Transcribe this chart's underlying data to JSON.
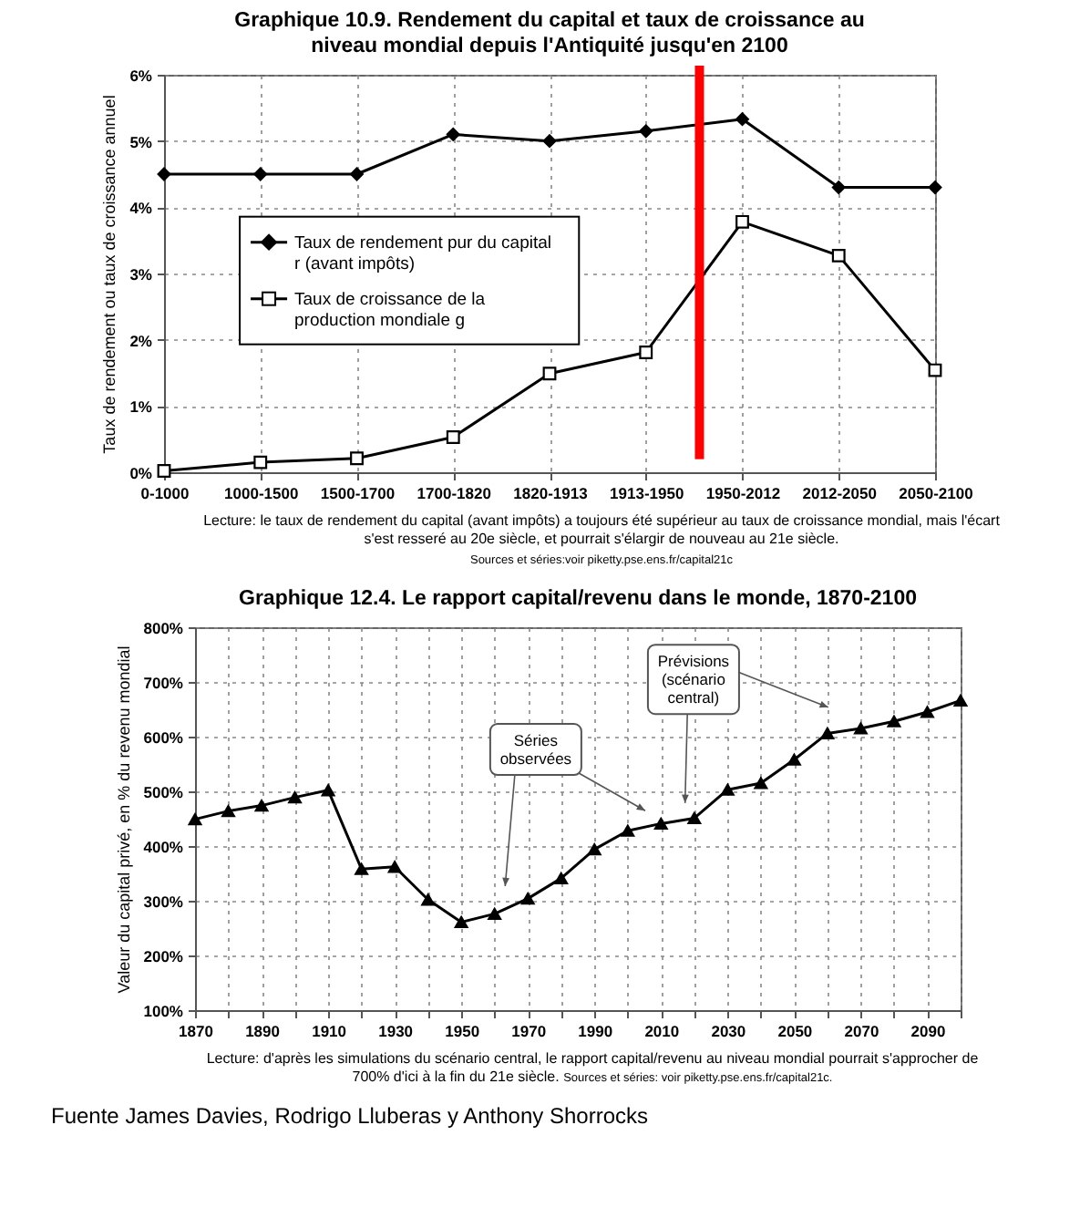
{
  "chart_data": [
    {
      "type": "line",
      "title": "Graphique 10.9. Rendement du capital et taux de croissance au niveau mondial depuis l'Antiquité jusqu'en 2100",
      "ylabel": "Taux de rendement ou taux de croissance annuel",
      "categories": [
        "0-1000",
        "1000-1500",
        "1500-1700",
        "1700-1820",
        "1820-1913",
        "1913-1950",
        "1950-2012",
        "2012-2050",
        "2050-2100"
      ],
      "series": [
        {
          "name": "Taux de rendement pur du capital r (avant impôts)",
          "color": "#000000",
          "marker": "diamond",
          "values": [
            4.5,
            4.5,
            4.5,
            5.1,
            5.0,
            5.15,
            5.33,
            4.3,
            4.3
          ]
        },
        {
          "name": "Taux de croissance de la production mondiale g",
          "color": "#000000",
          "marker": "square",
          "values": [
            0.02,
            0.15,
            0.21,
            0.53,
            1.49,
            1.81,
            3.78,
            3.27,
            1.54
          ]
        }
      ],
      "ylim": [
        0,
        6
      ],
      "yticks": [
        {
          "value": 0,
          "label": "0%"
        },
        {
          "value": 1,
          "label": "1%"
        },
        {
          "value": 2,
          "label": "2%"
        },
        {
          "value": 3,
          "label": "3%"
        },
        {
          "value": 4,
          "label": "4%"
        },
        {
          "value": 5,
          "label": "5%"
        },
        {
          "value": 6,
          "label": "6%"
        }
      ],
      "grid": true,
      "legend": "center left",
      "line_style": "solid",
      "annotations": [
        "Lecture: le taux de rendement du capital (avant impôts) a toujours été supérieur au taux de croissance mondial, mais l'écart s'est resseré au 20e siècle, et pourrait s'élargir de nouveau au 21e siècle.",
        "Sources et séries:voir piketty.pse.ens.fr/capital21c"
      ]
    },
    {
      "type": "line",
      "title": "Graphique 12.4. Le rapport capital/revenu dans le monde, 1870-2100",
      "ylabel": "Valeur du capital privé, en % du revenu mondial",
      "x": [
        1870,
        1880,
        1890,
        1900,
        1910,
        1920,
        1930,
        1940,
        1950,
        1960,
        1970,
        1980,
        1990,
        2000,
        2010,
        2020,
        2030,
        2040,
        2050,
        2060,
        2070,
        2080,
        2090,
        2100
      ],
      "series": [
        {
          "color": "#000000",
          "marker": "triangle",
          "values": [
            449,
            464,
            474,
            489,
            502,
            358,
            362,
            302,
            261,
            276,
            304,
            341,
            394,
            428,
            441,
            451,
            503,
            515,
            558,
            606,
            615,
            628,
            645,
            666
          ]
        }
      ],
      "xlim": [
        1870,
        2100
      ],
      "xticks": [
        1870,
        {
          "value": 1880,
          "label": null
        },
        1890,
        {
          "value": 1900,
          "label": null
        },
        1910,
        {
          "value": 1920,
          "label": null
        },
        1930,
        {
          "value": 1940,
          "label": null
        },
        1950,
        {
          "value": 1960,
          "label": null
        },
        1970,
        {
          "value": 1980,
          "label": null
        },
        1990,
        {
          "value": 2000,
          "label": null
        },
        2010,
        {
          "value": 2020,
          "label": null
        },
        2030,
        {
          "value": 2040,
          "label": null
        },
        2050,
        {
          "value": 2060,
          "label": null
        },
        2070,
        {
          "value": 2080,
          "label": null
        },
        2090,
        {
          "value": 2100,
          "label": null
        }
      ],
      "ylim": [
        100,
        800
      ],
      "yticks": [
        {
          "value": 100,
          "label": "100%"
        },
        {
          "value": 200,
          "label": "200%"
        },
        {
          "value": 300,
          "label": "300%"
        },
        {
          "value": 400,
          "label": "400%"
        },
        {
          "value": 500,
          "label": "500%"
        },
        {
          "value": 600,
          "label": "600%"
        },
        {
          "value": 700,
          "label": "700%"
        },
        {
          "value": 800,
          "label": "800%"
        }
      ],
      "grid": true,
      "line_style": "solid",
      "annotations": [
        "Séries observées",
        "Prévisions (scénario central)",
        "Lecture: d'après les simulations du scénario central, le rapport capital/revenu au niveau mondial pourrait s'approcher de 700% d'ici à la fin du 21e siècle.",
        "Sources et séries: voir piketty.pse.ens.fr/capital21c.",
        "Fuente James Davies, Rodrigo Lluberas y Anthony Shorrocks"
      ]
    }
  ]
}
